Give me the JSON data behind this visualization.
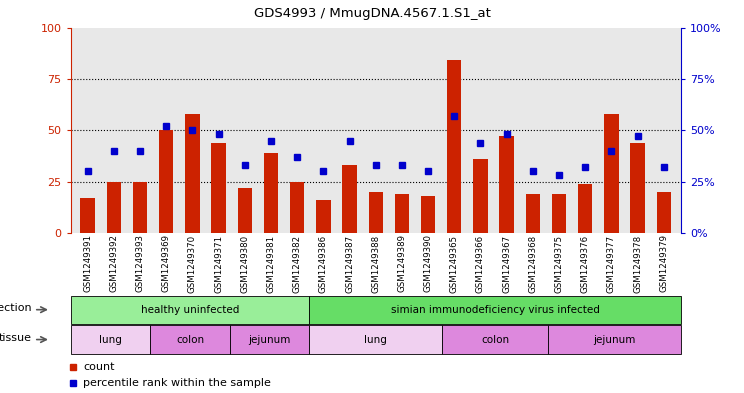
{
  "title": "GDS4993 / MmugDNA.4567.1.S1_at",
  "samples": [
    "GSM1249391",
    "GSM1249392",
    "GSM1249393",
    "GSM1249369",
    "GSM1249370",
    "GSM1249371",
    "GSM1249380",
    "GSM1249381",
    "GSM1249382",
    "GSM1249386",
    "GSM1249387",
    "GSM1249388",
    "GSM1249389",
    "GSM1249390",
    "GSM1249365",
    "GSM1249366",
    "GSM1249367",
    "GSM1249368",
    "GSM1249375",
    "GSM1249376",
    "GSM1249377",
    "GSM1249378",
    "GSM1249379"
  ],
  "counts": [
    17,
    25,
    25,
    50,
    58,
    44,
    22,
    39,
    25,
    16,
    33,
    20,
    19,
    18,
    84,
    36,
    47,
    19,
    19,
    24,
    58,
    44,
    20
  ],
  "percentile": [
    30,
    40,
    40,
    52,
    50,
    48,
    33,
    45,
    37,
    30,
    45,
    33,
    33,
    30,
    57,
    44,
    48,
    30,
    28,
    32,
    40,
    47,
    32
  ],
  "bar_color": "#cc2200",
  "dot_color": "#0000cc",
  "bg_color": "#e8e8e8",
  "left_axis_color": "#cc2200",
  "right_axis_color": "#0000cc",
  "infection_groups": [
    {
      "label": "healthy uninfected",
      "start": 0,
      "end": 9,
      "color": "#99ee99"
    },
    {
      "label": "simian immunodeficiency virus infected",
      "start": 9,
      "end": 23,
      "color": "#66dd66"
    }
  ],
  "tissue_groups": [
    {
      "label": "lung",
      "start": 0,
      "end": 3,
      "color": "#f0d0f0"
    },
    {
      "label": "colon",
      "start": 3,
      "end": 6,
      "color": "#dd88dd"
    },
    {
      "label": "jejunum",
      "start": 6,
      "end": 9,
      "color": "#dd88dd"
    },
    {
      "label": "lung",
      "start": 9,
      "end": 14,
      "color": "#f0d0f0"
    },
    {
      "label": "colon",
      "start": 14,
      "end": 18,
      "color": "#dd88dd"
    },
    {
      "label": "jejunum",
      "start": 18,
      "end": 23,
      "color": "#dd88dd"
    }
  ],
  "legend_count_label": "count",
  "legend_percentile_label": "percentile rank within the sample",
  "infection_label": "infection",
  "tissue_label": "tissue"
}
